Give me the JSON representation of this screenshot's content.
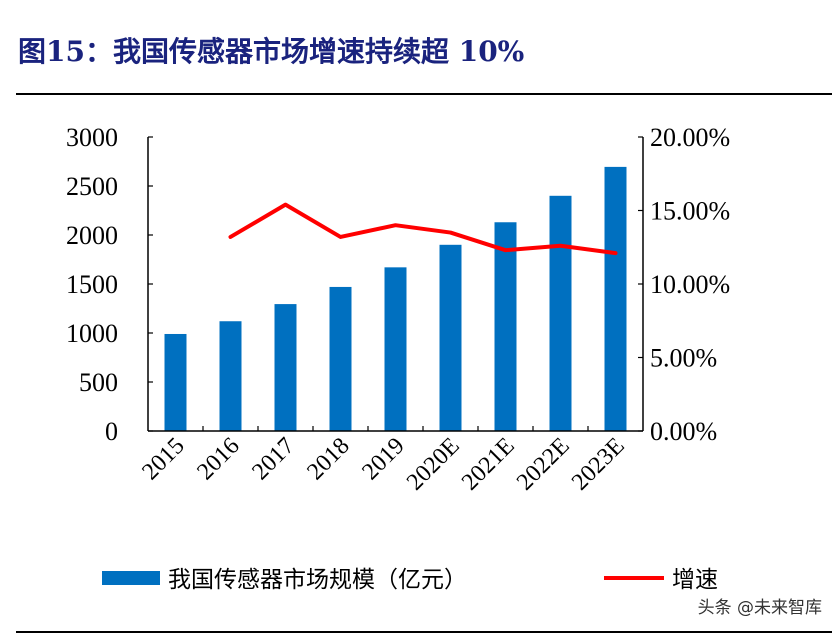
{
  "title": "图15：我国传感器市场增速持续超 10%",
  "watermark": "头条 @未来智库",
  "colors": {
    "bar": "#0070c0",
    "line": "#ff0000",
    "title": "#1a237e"
  },
  "chart_data": {
    "type": "bar+line",
    "categories": [
      "2015",
      "2016",
      "2017",
      "2018",
      "2019",
      "2020E",
      "2021E",
      "2022E",
      "2023E"
    ],
    "series": [
      {
        "name": "我国传感器市场规模（亿元）",
        "type": "bar",
        "axis": "left",
        "values": [
          990,
          1120,
          1295,
          1470,
          1670,
          1900,
          2130,
          2400,
          2695
        ]
      },
      {
        "name": "增速",
        "type": "line",
        "axis": "right",
        "values": [
          null,
          13.2,
          15.4,
          13.2,
          14.0,
          13.5,
          12.3,
          12.6,
          12.1
        ]
      }
    ],
    "left_axis": {
      "range": [
        0,
        3000
      ],
      "ticks": [
        "0",
        "500",
        "1000",
        "1500",
        "2000",
        "2500",
        "3000"
      ]
    },
    "right_axis": {
      "range": [
        0,
        20
      ],
      "ticks": [
        "0.00%",
        "5.00%",
        "10.00%",
        "15.00%",
        "20.00%"
      ]
    },
    "grid": false,
    "legend": "bottom"
  }
}
